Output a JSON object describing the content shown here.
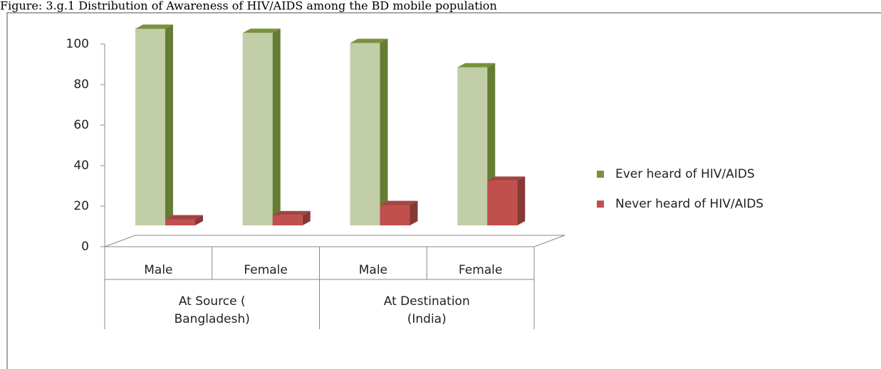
{
  "chart_data": {
    "type": "bar3d",
    "title": "Figure: 3.g.1 Distribution of Awareness of HIV/AIDS among the BD mobile population",
    "categories": [
      "Male",
      "Female",
      "Male",
      "Female"
    ],
    "groups": [
      {
        "label": [
          "At Source (",
          "Bangladesh)"
        ],
        "span": 2
      },
      {
        "label": [
          "At Destination",
          "(India)"
        ],
        "span": 2
      }
    ],
    "series": [
      {
        "name": "Ever heard of HIV/AIDS",
        "color": "#77933c",
        "values": [
          97,
          95,
          90,
          78
        ]
      },
      {
        "name": "Never heard of HIV/AIDS",
        "color": "#c0504d",
        "values": [
          3,
          5,
          10,
          22
        ]
      }
    ],
    "ylim": [
      0,
      100
    ],
    "yticks": [
      0,
      20,
      40,
      60,
      80,
      100
    ],
    "legend": "right"
  }
}
